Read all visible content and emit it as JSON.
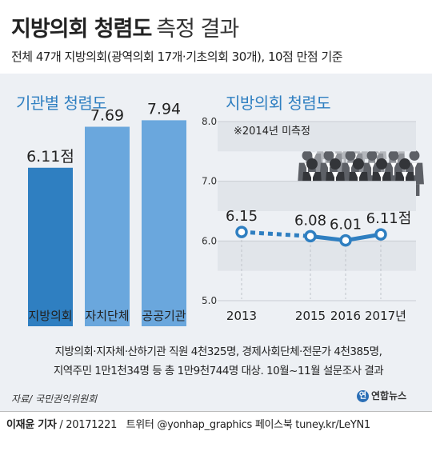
{
  "header": {
    "title_bold": "지방의회 청렴도",
    "title_light": "측정 결과",
    "subtitle": "전체 47개 지방의회(광역의회 17개·기초의회 30개), 10점 만점 기준"
  },
  "chart_data": [
    {
      "type": "bar",
      "title": "기관별 청렴도",
      "categories": [
        "지방의회",
        "자치단체",
        "공공기관"
      ],
      "values": [
        6.11,
        7.69,
        7.94
      ],
      "value_labels": [
        "6.11점",
        "7.69",
        "7.94"
      ],
      "colors": [
        "#2f7fc1",
        "#6aa7dd",
        "#6aa7dd"
      ],
      "ylim": [
        0,
        9
      ]
    },
    {
      "type": "line",
      "title": "지방의회 청렴도",
      "x": [
        "2013",
        "2015",
        "2016",
        "2017년"
      ],
      "values": [
        6.15,
        6.08,
        6.01,
        6.11
      ],
      "value_labels": [
        "6.15",
        "6.08",
        "6.01",
        "6.11점"
      ],
      "yticks": [
        "8.0",
        "7.0",
        "6.0",
        "5.0"
      ],
      "ylim": [
        5.0,
        8.0
      ],
      "grid": true,
      "annotation": "※2014년 미측정",
      "dashed_segment": [
        "2013",
        "2015"
      ],
      "line_color": "#2f7fc1"
    }
  ],
  "notes": {
    "line1": "지방의회·지자체·산하기관 직원 4천325명, 경제사회단체·전문가 4천385명,",
    "line2": "지역주민 1만1천34명 등 총 1만9천744명 대상. 10월~11월 설문조사 결과"
  },
  "source": "자료/ 국민권익위원회",
  "logo": {
    "mark": "연",
    "text": "연합뉴스"
  },
  "footer": {
    "reporter": "이재윤 기자",
    "date": "/ 20171221",
    "social": "트위터 @yonhap_graphics  페이스북 tuney.kr/LeYN1"
  }
}
